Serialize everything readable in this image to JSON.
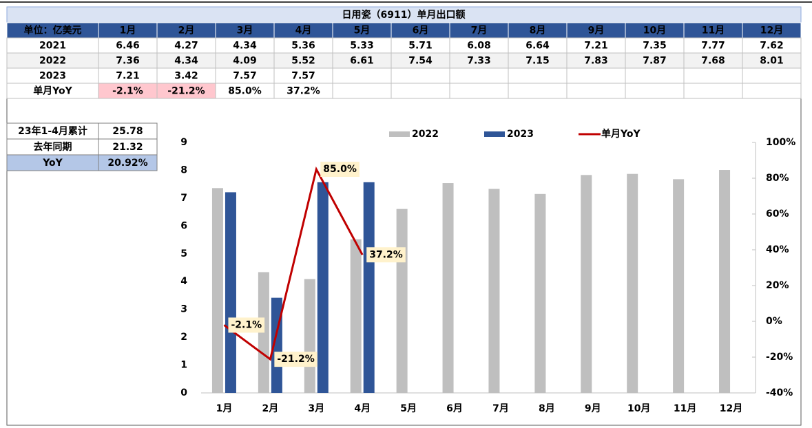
{
  "table": {
    "title": "日用瓷（6911）单月出口额",
    "header": [
      "单位：亿美元",
      "1月",
      "2月",
      "3月",
      "4月",
      "5月",
      "6月",
      "7月",
      "8月",
      "9月",
      "10月",
      "11月",
      "12月"
    ],
    "rows": [
      [
        "2021",
        "6.46",
        "4.27",
        "4.34",
        "5.36",
        "5.33",
        "5.71",
        "6.08",
        "6.64",
        "7.21",
        "7.35",
        "7.77",
        "7.62"
      ],
      [
        "2022",
        "7.36",
        "4.34",
        "4.09",
        "5.52",
        "6.61",
        "7.54",
        "7.33",
        "7.15",
        "7.83",
        "7.87",
        "7.68",
        "8.01"
      ],
      [
        "2023",
        "7.21",
        "3.42",
        "7.57",
        "7.57"
      ],
      [
        "单月YoY",
        "-2.1%",
        "-21.2%",
        "85.0%",
        "37.2%"
      ]
    ]
  },
  "summary": {
    "rows": [
      [
        "23年1-4月累计",
        "25.78"
      ],
      [
        "去年同期",
        "21.32"
      ],
      [
        "YoY",
        "20.92%"
      ]
    ]
  },
  "chart_data": {
    "type": "bar",
    "categories": [
      "1月",
      "2月",
      "3月",
      "4月",
      "5月",
      "6月",
      "7月",
      "8月",
      "9月",
      "10月",
      "11月",
      "12月"
    ],
    "series": [
      {
        "name": "2022",
        "color": "#bfbfbf",
        "values": [
          7.36,
          4.34,
          4.09,
          5.52,
          6.61,
          7.54,
          7.33,
          7.15,
          7.83,
          7.87,
          7.68,
          8.01
        ]
      },
      {
        "name": "2023",
        "color": "#2f5597",
        "values": [
          7.21,
          3.42,
          7.57,
          7.57,
          null,
          null,
          null,
          null,
          null,
          null,
          null,
          null
        ]
      },
      {
        "name": "单月YoY",
        "type": "line",
        "axis": "y2",
        "color": "#c00000",
        "values": [
          -2.1,
          -21.2,
          85.0,
          37.2,
          null,
          null,
          null,
          null,
          null,
          null,
          null,
          null
        ],
        "value_labels": [
          "-2.1%",
          "-21.2%",
          "85.0%",
          "37.2%",
          null,
          null,
          null,
          null,
          null,
          null,
          null,
          null
        ]
      }
    ],
    "ylim": [
      0,
      9
    ],
    "yticks": [
      0,
      1,
      2,
      3,
      4,
      5,
      6,
      7,
      8,
      9
    ],
    "y2lim": [
      -40,
      100
    ],
    "y2ticks": [
      {
        "value": -40,
        "label": "-40%"
      },
      {
        "value": -20,
        "label": "-20%"
      },
      {
        "value": 0,
        "label": "0%"
      },
      {
        "value": 20,
        "label": "20%"
      },
      {
        "value": 40,
        "label": "40%"
      },
      {
        "value": 60,
        "label": "60%"
      },
      {
        "value": 80,
        "label": "80%"
      },
      {
        "value": 100,
        "label": "100%"
      }
    ],
    "legend": "top"
  }
}
